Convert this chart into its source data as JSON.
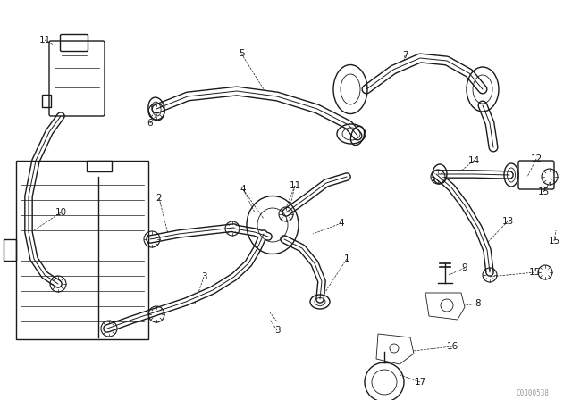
{
  "background_color": "#ffffff",
  "line_color": "#1a1a1a",
  "watermark": "C0300538",
  "fig_width": 6.4,
  "fig_height": 4.48,
  "dpi": 100,
  "lw_hose": 6.5,
  "lw_hose_inner": 4.5,
  "lw_main": 1.0,
  "lw_thin": 0.6,
  "lw_dash": 0.5,
  "font_size": 7.5,
  "hose_color": "#1a1a1a",
  "hose_white": "#ffffff"
}
